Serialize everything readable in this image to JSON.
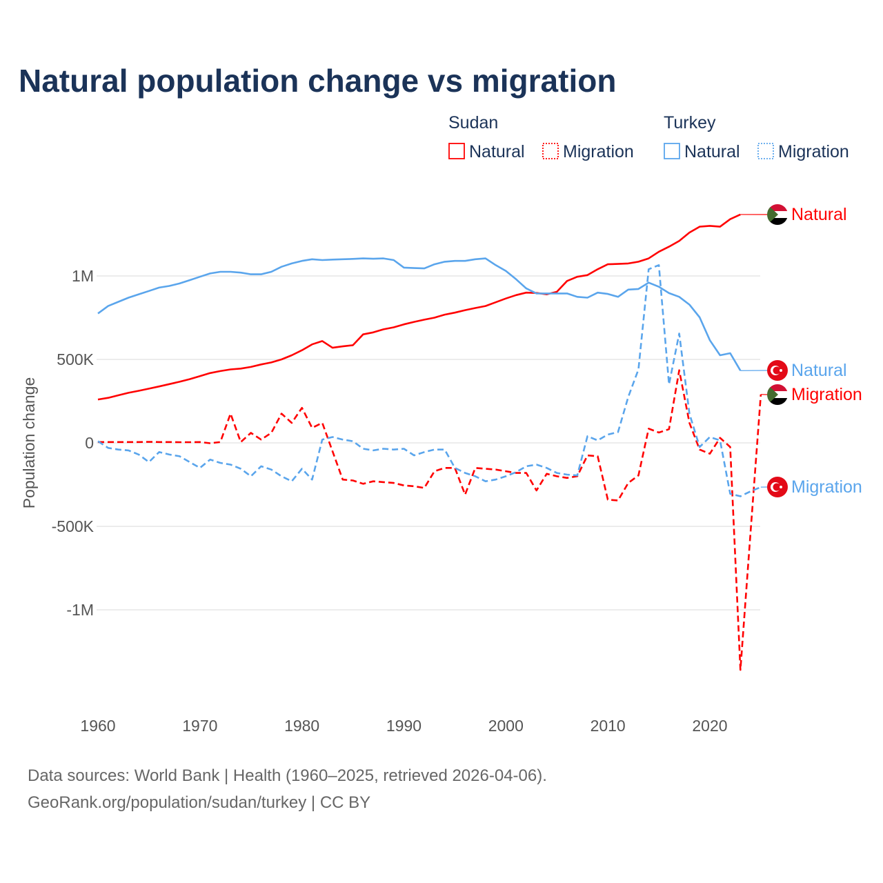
{
  "chart_data": {
    "type": "line",
    "title": "Natural population change vs migration",
    "xlabel": "",
    "ylabel": "Population change",
    "xlim": [
      1960,
      2025
    ],
    "ylim": [
      -1400000,
      1450000
    ],
    "grid": true,
    "x_ticks": [
      1960,
      1970,
      1980,
      1990,
      2000,
      2010,
      2020
    ],
    "x_tick_labels": [
      "1960",
      "1970",
      "1980",
      "1990",
      "2000",
      "2010",
      "2020"
    ],
    "y_ticks": [
      1000000,
      500000,
      0,
      -500000,
      -1000000
    ],
    "y_tick_labels": [
      "1M",
      "500K",
      "0",
      "-500K",
      "-1M"
    ],
    "legend": {
      "placement": "top-right",
      "groups": [
        {
          "country": "Sudan",
          "items": [
            "Natural",
            "Migration"
          ]
        },
        {
          "country": "Turkey",
          "items": [
            "Natural",
            "Migration"
          ]
        }
      ]
    },
    "series": [
      {
        "name": "Sudan Natural",
        "country": "Sudan",
        "kind": "Natural",
        "color": "#ff0000",
        "dash": false,
        "end_label": "Natural",
        "flag": "sudan",
        "start": 1960,
        "values": [
          260000,
          270000,
          285000,
          300000,
          312000,
          325000,
          338000,
          352000,
          366000,
          382000,
          400000,
          418000,
          430000,
          440000,
          445000,
          455000,
          470000,
          482000,
          500000,
          525000,
          555000,
          590000,
          610000,
          570000,
          578000,
          585000,
          650000,
          662000,
          680000,
          692000,
          710000,
          725000,
          738000,
          750000,
          768000,
          780000,
          795000,
          808000,
          820000,
          842000,
          865000,
          885000,
          900000,
          898000,
          890000,
          905000,
          970000,
          995000,
          1005000,
          1040000,
          1070000,
          1072000,
          1075000,
          1085000,
          1105000,
          1145000,
          1175000,
          1210000,
          1260000,
          1295000,
          1300000,
          1295000,
          1340000,
          1368000
        ]
      },
      {
        "name": "Sudan Migration",
        "country": "Sudan",
        "kind": "Migration",
        "color": "#ff0000",
        "dash": true,
        "end_label": "Migration",
        "flag": "sudan",
        "start": 1960,
        "values": [
          5000,
          5000,
          5000,
          5000,
          5000,
          6000,
          5000,
          5000,
          4000,
          4000,
          5000,
          -2000,
          5000,
          175000,
          5000,
          60000,
          20000,
          60000,
          175000,
          120000,
          210000,
          90000,
          120000,
          -50000,
          -220000,
          -225000,
          -245000,
          -230000,
          -235000,
          -240000,
          -255000,
          -260000,
          -270000,
          -170000,
          -150000,
          -150000,
          -310000,
          -150000,
          -155000,
          -160000,
          -170000,
          -180000,
          -180000,
          -285000,
          -185000,
          -200000,
          -210000,
          -200000,
          -75000,
          -80000,
          -340000,
          -345000,
          -240000,
          -195000,
          85000,
          62000,
          82000,
          435000,
          120000,
          -40000,
          -65000,
          30000,
          -25000,
          -1360000,
          -530000,
          290000
        ]
      },
      {
        "name": "Turkey Natural",
        "country": "Turkey",
        "kind": "Natural",
        "color": "#5aa5ec",
        "dash": false,
        "end_label": "Natural",
        "flag": "turkey",
        "start": 1960,
        "values": [
          775000,
          820000,
          845000,
          870000,
          890000,
          910000,
          930000,
          940000,
          955000,
          975000,
          995000,
          1015000,
          1025000,
          1025000,
          1020000,
          1010000,
          1010000,
          1025000,
          1055000,
          1075000,
          1090000,
          1100000,
          1095000,
          1098000,
          1100000,
          1102000,
          1105000,
          1103000,
          1105000,
          1095000,
          1050000,
          1047000,
          1045000,
          1070000,
          1085000,
          1090000,
          1090000,
          1100000,
          1105000,
          1065000,
          1030000,
          980000,
          925000,
          895000,
          895000,
          895000,
          895000,
          875000,
          870000,
          900000,
          892000,
          875000,
          918000,
          922000,
          960000,
          935000,
          897000,
          875000,
          828000,
          752000,
          615000,
          525000,
          537000,
          433000
        ]
      },
      {
        "name": "Turkey Migration",
        "country": "Turkey",
        "kind": "Migration",
        "color": "#5aa5ec",
        "dash": true,
        "end_label": "Migration",
        "flag": "turkey",
        "start": 1960,
        "values": [
          10000,
          -30000,
          -40000,
          -45000,
          -70000,
          -115000,
          -55000,
          -70000,
          -80000,
          -115000,
          -150000,
          -100000,
          -120000,
          -130000,
          -155000,
          -200000,
          -140000,
          -160000,
          -200000,
          -230000,
          -155000,
          -220000,
          20000,
          35000,
          20000,
          10000,
          -35000,
          -45000,
          -35000,
          -40000,
          -35000,
          -75000,
          -55000,
          -40000,
          -40000,
          -150000,
          -180000,
          -200000,
          -230000,
          -220000,
          -200000,
          -175000,
          -140000,
          -130000,
          -150000,
          -180000,
          -190000,
          -195000,
          40000,
          15000,
          50000,
          65000,
          275000,
          440000,
          1040000,
          1065000,
          350000,
          655000,
          175000,
          -25000,
          35000,
          15000,
          -305000,
          -320000,
          -290000,
          -265000
        ]
      }
    ]
  },
  "footer": {
    "line1": "Data sources: World Bank | Health (1960–2025, retrieved 2026-04-06).",
    "line2": "GeoRank.org/population/sudan/turkey | CC BY"
  },
  "colors": {
    "sudan": "#ff0000",
    "turkey": "#5aa5ec",
    "title": "#1b3358"
  }
}
